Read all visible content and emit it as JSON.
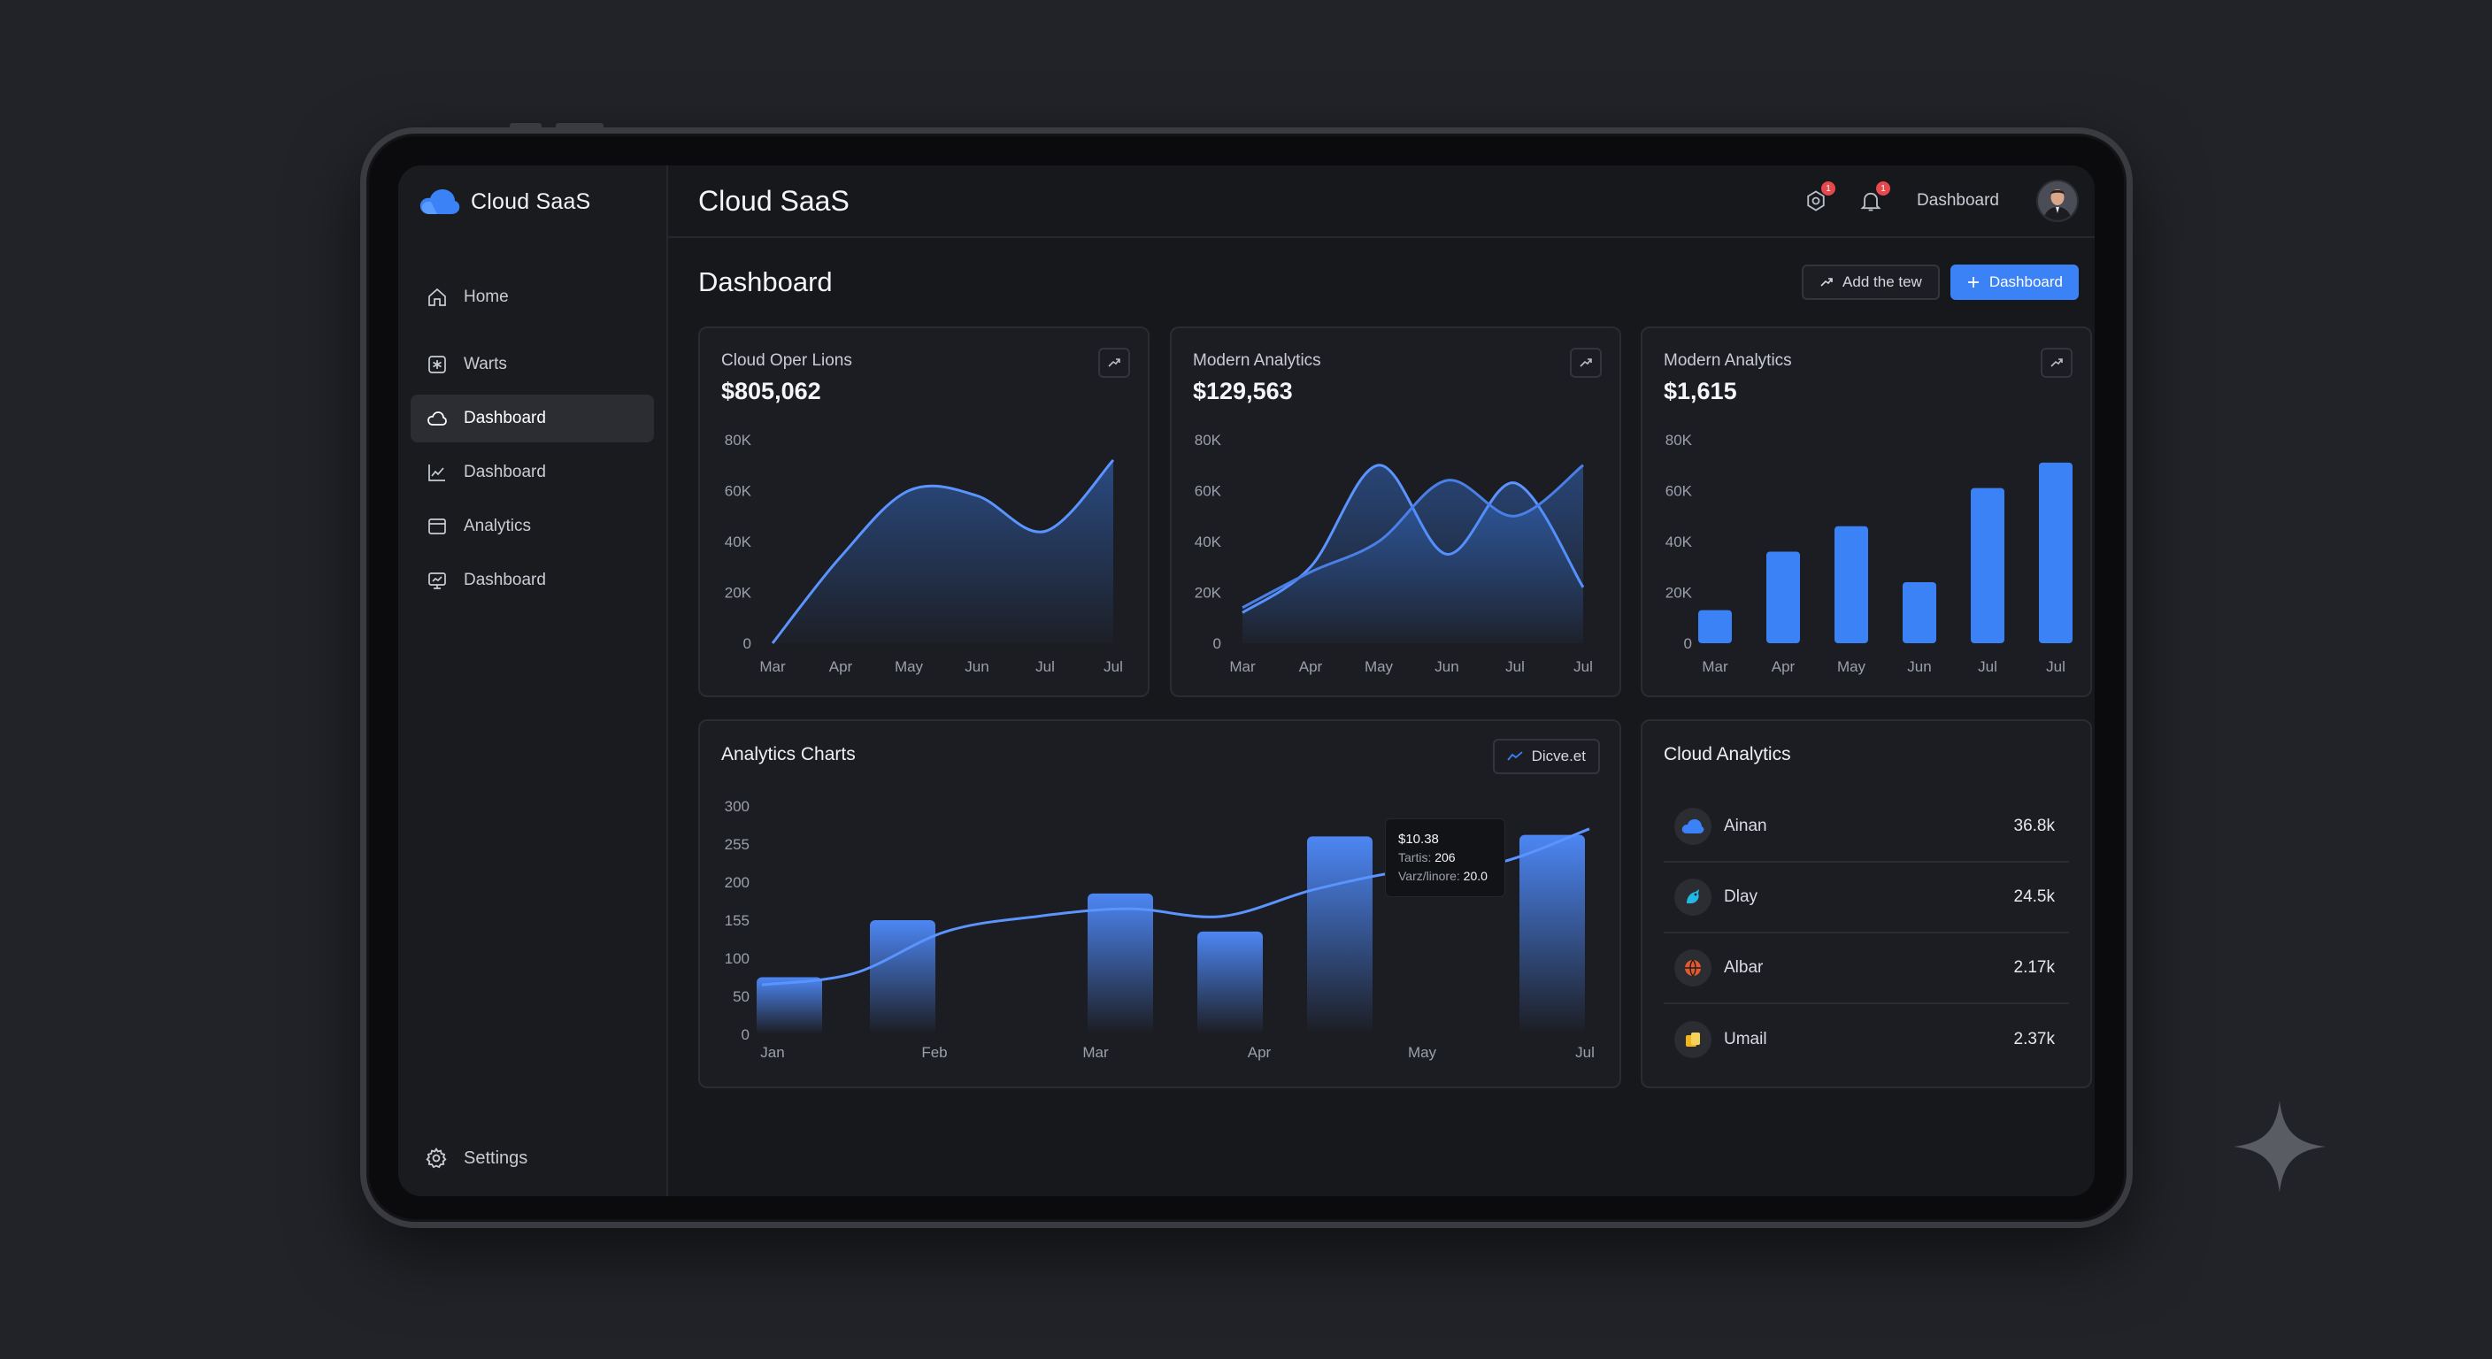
{
  "app": {
    "brand": "Cloud SaaS",
    "title": "Cloud SaaS"
  },
  "colors": {
    "accent": "#3b82f6",
    "background": "#222328",
    "panel": "#1c1d22",
    "badge": "#e5484d"
  },
  "sidebar": {
    "items": [
      {
        "label": "Home",
        "icon": "home-icon",
        "active": false
      },
      {
        "label": "Warts",
        "icon": "asterisk-box-icon",
        "active": false
      },
      {
        "label": "Dashboard",
        "icon": "cloud-icon",
        "active": true
      },
      {
        "label": "Dashboard",
        "icon": "line-chart-icon",
        "active": false
      },
      {
        "label": "Analytics",
        "icon": "browser-window-icon",
        "active": false
      },
      {
        "label": "Dashboard",
        "icon": "monitor-icon",
        "active": false
      }
    ],
    "settings_label": "Settings"
  },
  "topbar": {
    "settings_badge": "1",
    "notifications_badge": "1",
    "label": "Dashboard"
  },
  "page": {
    "title": "Dashboard",
    "actions": {
      "secondary_label": "Add the tew",
      "primary_label": "Dashboard"
    }
  },
  "cards": [
    {
      "title": "Cloud Oper Lions",
      "value": "$805,062"
    },
    {
      "title": "Modern Analytics",
      "value": "$129,563"
    },
    {
      "title": "Modern Analytics",
      "value": "$1,615"
    }
  ],
  "analytics": {
    "title": "Analytics Charts",
    "chip_label": "Dicve.et",
    "tooltip": {
      "value": "$10.38",
      "line1_label": "Tartis:",
      "line1_value": "206",
      "line2_label": "Varz/linore:",
      "line2_value": "20.0"
    }
  },
  "cloud_analytics": {
    "title": "Cloud Analytics",
    "rows": [
      {
        "name": "Ainan",
        "value": "36.8k",
        "icon": "cloud-logo-icon",
        "color": "#3b82f6"
      },
      {
        "name": "Dlay",
        "value": "24.5k",
        "icon": "bird-icon",
        "color": "#22b8e6"
      },
      {
        "name": "Albar",
        "value": "2.17k",
        "icon": "ball-icon",
        "color": "#e2592c"
      },
      {
        "name": "Umail",
        "value": "2.37k",
        "icon": "folder-icon",
        "color": "#f2b51c"
      }
    ]
  },
  "chart_data": [
    {
      "type": "area",
      "x": [
        "Mar",
        "Apr",
        "May",
        "Jun",
        "Jul",
        "Jul"
      ],
      "y_ticks": [
        "80K",
        "60K",
        "40K",
        "20K",
        "0"
      ],
      "ylim": [
        0,
        80000
      ],
      "series": [
        {
          "values": [
            0,
            34000,
            60000,
            58000,
            44000,
            72000
          ]
        }
      ]
    },
    {
      "type": "area",
      "x": [
        "Mar",
        "Apr",
        "May",
        "Jun",
        "Jul",
        "Jul"
      ],
      "y_ticks": [
        "80K",
        "60K",
        "40K",
        "20K",
        "0"
      ],
      "ylim": [
        0,
        80000
      ],
      "series": [
        {
          "values": [
            12000,
            30000,
            70000,
            35000,
            63000,
            22000
          ]
        },
        {
          "values": [
            14000,
            28000,
            40000,
            64000,
            50000,
            70000
          ]
        }
      ]
    },
    {
      "type": "bar",
      "categories": [
        "Mar",
        "Apr",
        "May",
        "Jun",
        "Jul",
        "Jul"
      ],
      "y_ticks": [
        "80K",
        "60K",
        "40K",
        "20K",
        "0"
      ],
      "ylim": [
        0,
        80000
      ],
      "values": [
        13000,
        36000,
        46000,
        24000,
        61000,
        71000
      ]
    },
    {
      "type": "bar",
      "categories": [
        "Jan",
        "Feb",
        "Mar",
        "Apr",
        "May",
        "Jul"
      ],
      "y_ticks": [
        "300",
        "255",
        "200",
        "155",
        "100",
        "50",
        "0"
      ],
      "ylim": [
        0,
        300
      ],
      "bars": [
        75,
        150,
        185,
        135,
        260,
        262
      ],
      "line": [
        65,
        80,
        135,
        155,
        165,
        155,
        190,
        215,
        225,
        270
      ]
    }
  ]
}
